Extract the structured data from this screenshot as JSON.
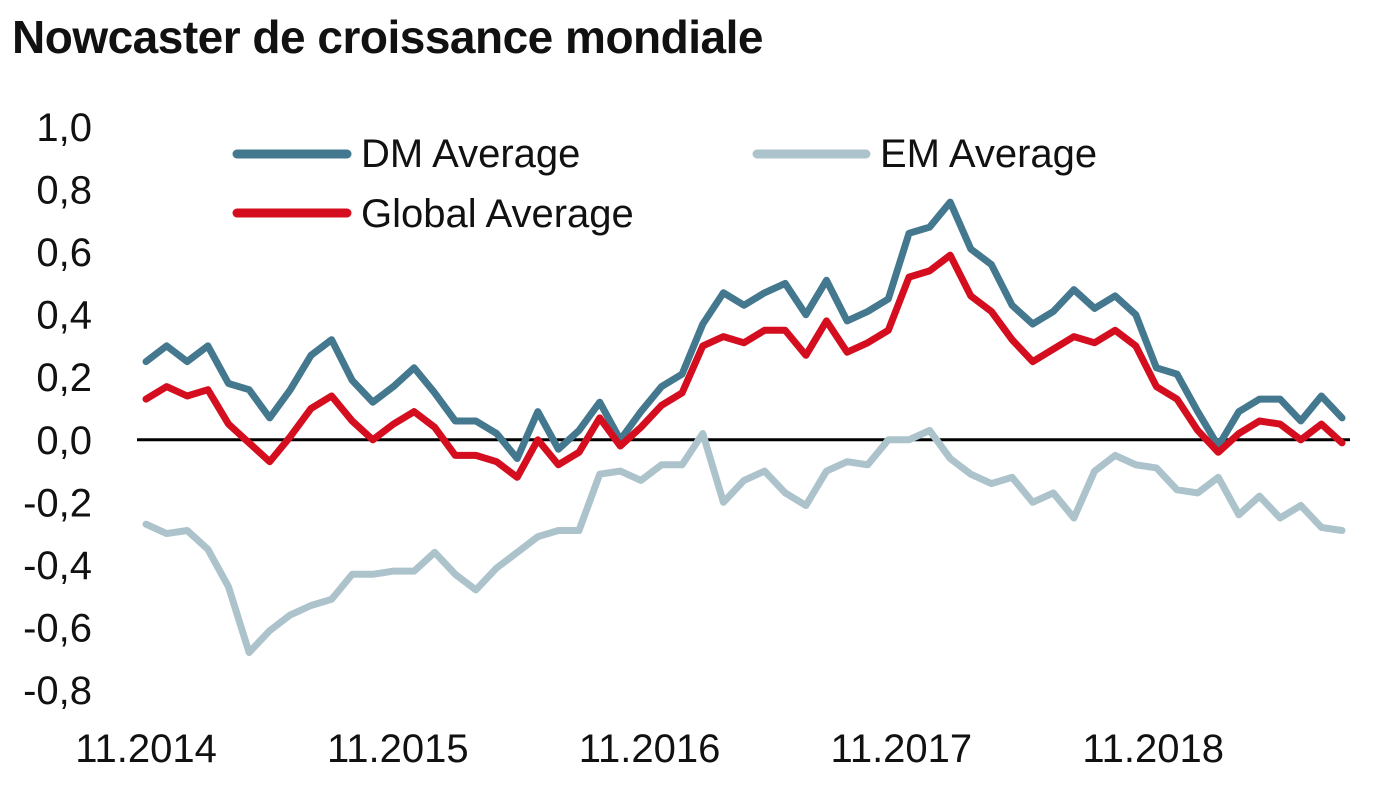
{
  "chart_data": {
    "type": "line",
    "title": "Nowcaster de croissance mondiale",
    "xlabel": "",
    "ylabel": "",
    "ylim": [
      -0.8,
      1.0
    ],
    "y_ticks": [
      "1,0",
      "0,8",
      "0,6",
      "0,4",
      "0,2",
      "0,0",
      "-0,2",
      "-0,4",
      "-0,6",
      "-0,8"
    ],
    "x_tick_labels": [
      "11.2014",
      "11.2015",
      "11.2016",
      "11.2017",
      "11.2018"
    ],
    "x_start": "2014-11",
    "x_end": "2019-08",
    "zero_line": true,
    "grid": false,
    "legend_position": "top",
    "series": [
      {
        "name": "DM Average",
        "color": "#44788f",
        "values": [
          0.25,
          0.3,
          0.25,
          0.3,
          0.18,
          0.16,
          0.07,
          0.16,
          0.27,
          0.32,
          0.19,
          0.12,
          0.17,
          0.23,
          0.15,
          0.06,
          0.06,
          0.02,
          -0.06,
          0.09,
          -0.03,
          0.03,
          0.12,
          0.0,
          0.09,
          0.17,
          0.21,
          0.37,
          0.47,
          0.43,
          0.47,
          0.5,
          0.4,
          0.51,
          0.38,
          0.41,
          0.45,
          0.66,
          0.68,
          0.76,
          0.61,
          0.56,
          0.43,
          0.37,
          0.41,
          0.48,
          0.42,
          0.46,
          0.4,
          0.23,
          0.21,
          0.09,
          -0.02,
          0.09,
          0.13,
          0.13,
          0.06,
          0.14,
          0.07
        ]
      },
      {
        "name": "EM Average",
        "color": "#adc3cc",
        "values": [
          -0.27,
          -0.3,
          -0.29,
          -0.35,
          -0.47,
          -0.68,
          -0.61,
          -0.56,
          -0.53,
          -0.51,
          -0.43,
          -0.43,
          -0.42,
          -0.42,
          -0.36,
          -0.43,
          -0.48,
          -0.41,
          -0.36,
          -0.31,
          -0.29,
          -0.29,
          -0.11,
          -0.1,
          -0.13,
          -0.08,
          -0.08,
          0.02,
          -0.2,
          -0.13,
          -0.1,
          -0.17,
          -0.21,
          -0.1,
          -0.07,
          -0.08,
          0.0,
          0.0,
          0.03,
          -0.06,
          -0.11,
          -0.14,
          -0.12,
          -0.2,
          -0.17,
          -0.25,
          -0.1,
          -0.05,
          -0.08,
          -0.09,
          -0.16,
          -0.17,
          -0.12,
          -0.24,
          -0.18,
          -0.25,
          -0.21,
          -0.28,
          -0.29
        ]
      },
      {
        "name": "Global Average",
        "color": "#d40e1e",
        "values": [
          0.13,
          0.17,
          0.14,
          0.16,
          0.05,
          -0.01,
          -0.07,
          0.01,
          0.1,
          0.14,
          0.06,
          0.0,
          0.05,
          0.09,
          0.04,
          -0.05,
          -0.05,
          -0.07,
          -0.12,
          0.0,
          -0.08,
          -0.04,
          0.07,
          -0.02,
          0.04,
          0.11,
          0.15,
          0.3,
          0.33,
          0.31,
          0.35,
          0.35,
          0.27,
          0.38,
          0.28,
          0.31,
          0.35,
          0.52,
          0.54,
          0.59,
          0.46,
          0.41,
          0.32,
          0.25,
          0.29,
          0.33,
          0.31,
          0.35,
          0.3,
          0.17,
          0.13,
          0.03,
          -0.04,
          0.02,
          0.06,
          0.05,
          0.0,
          0.05,
          -0.01
        ]
      }
    ]
  }
}
